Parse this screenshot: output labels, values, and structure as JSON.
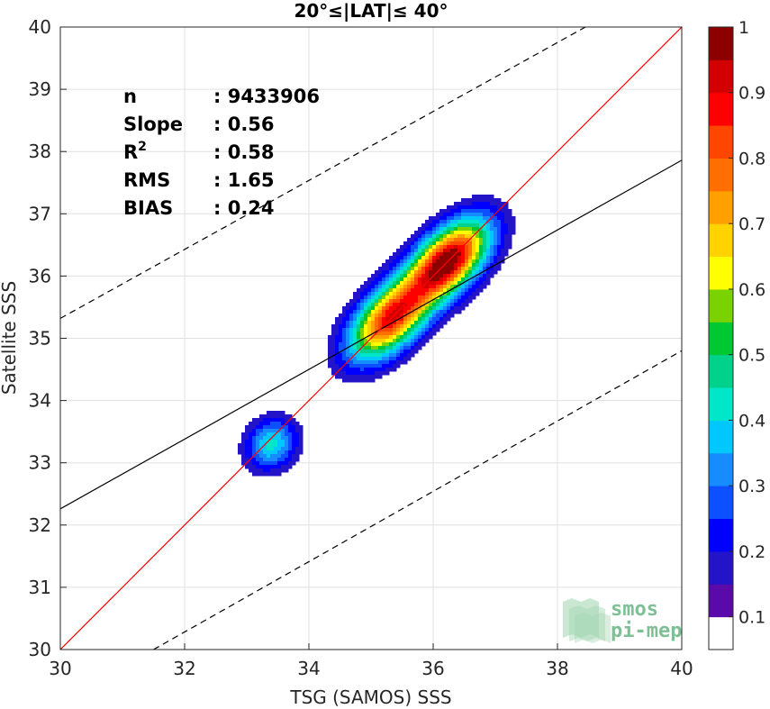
{
  "chart_data": {
    "type": "contour_density",
    "title": "20°≤|LAT|≤ 40°",
    "xlabel": "TSG (SAMOS) SSS",
    "ylabel": "Satellite SSS",
    "xlim": [
      30,
      40
    ],
    "ylim": [
      30,
      40
    ],
    "xticks": [
      30,
      32,
      34,
      36,
      38,
      40
    ],
    "yticks": [
      30,
      31,
      32,
      33,
      34,
      35,
      36,
      37,
      38,
      39,
      40
    ],
    "grid": true,
    "stats": [
      {
        "label": "n",
        "value": ": 9433906"
      },
      {
        "label": "Slope",
        "value": ": 0.56"
      },
      {
        "label": "R",
        "sup": "2",
        "value": ": 0.58"
      },
      {
        "label": "RMS",
        "value": ": 1.65"
      },
      {
        "label": "BIAS",
        "value": ": 0.24"
      }
    ],
    "lines": {
      "identity": {
        "x": [
          30,
          40
        ],
        "y": [
          30,
          40
        ],
        "color": "#ff0000"
      },
      "regression": {
        "x": [
          30,
          40
        ],
        "y": [
          32.26,
          37.86
        ],
        "color": "#000000"
      },
      "upper_bound": {
        "x": [
          30,
          38.45
        ],
        "y": [
          35.32,
          40
        ],
        "color": "#000000",
        "dash": true
      },
      "lower_bound": {
        "x": [
          31.5,
          40
        ],
        "y": [
          30,
          34.8
        ],
        "color": "#000000",
        "dash": true
      }
    },
    "peaks": [
      {
        "x": 36.25,
        "y": 36.25,
        "density": 1.0
      },
      {
        "x": 35.3,
        "y": 35.3,
        "density": 0.85
      },
      {
        "x": 33.4,
        "y": 33.3,
        "density": 0.35
      }
    ],
    "colorbar": {
      "ticks": [
        "0.1",
        "0.2",
        "0.3",
        "0.4",
        "0.5",
        "0.6",
        "0.7",
        "0.8",
        "0.9",
        "1"
      ],
      "colors": [
        "#ffffff",
        "#5a0aa8",
        "#2414c8",
        "#0000ff",
        "#0c50ff",
        "#168cff",
        "#00c8ff",
        "#00e6c8",
        "#00d28c",
        "#00c832",
        "#7ad200",
        "#ffff00",
        "#ffd200",
        "#ffa000",
        "#ff6e00",
        "#ff4600",
        "#ff0000",
        "#d20000",
        "#8c0000"
      ]
    },
    "logo": {
      "line1": "smos",
      "line2": "pi-mep"
    }
  }
}
